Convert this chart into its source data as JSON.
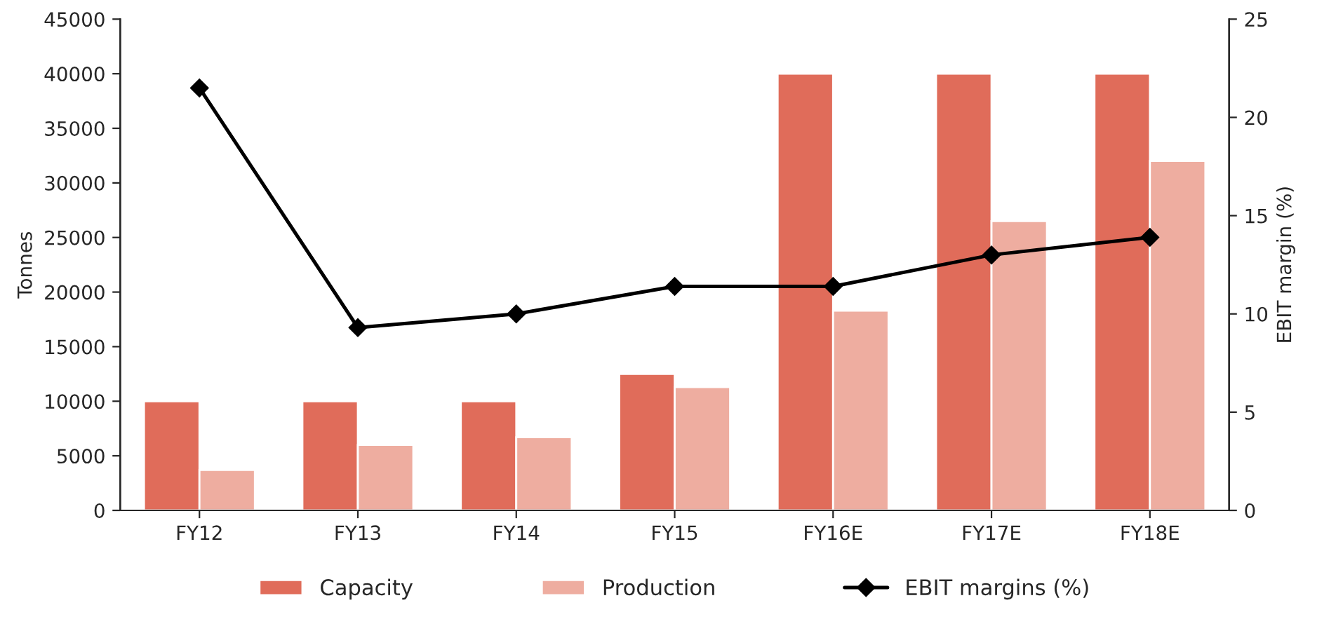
{
  "chart_data": {
    "type": "bar",
    "categories": [
      "FY12",
      "FY13",
      "FY14",
      "FY15",
      "FY16E",
      "FY17E",
      "FY18E"
    ],
    "ylabel": "Tonnes",
    "y2label": "EBIT margin (%)",
    "ylim": [
      0,
      45000
    ],
    "yticks": [
      0,
      5000,
      10000,
      15000,
      20000,
      25000,
      30000,
      35000,
      40000,
      45000
    ],
    "y2lim": [
      0,
      25
    ],
    "y2ticks": [
      0,
      5,
      10,
      15,
      20,
      25
    ],
    "series": [
      {
        "name": "Capacity",
        "color": "#e06c5a",
        "values": [
          10000,
          10000,
          10000,
          12500,
          40000,
          40000,
          40000
        ]
      },
      {
        "name": "Production",
        "color": "#eeada0",
        "values": [
          3700,
          6000,
          6700,
          11300,
          18300,
          26500,
          32000
        ]
      },
      {
        "name": "EBIT margins (%)",
        "type": "line",
        "axis": "y2",
        "color": "#000000",
        "marker": "diamond",
        "values": [
          21.5,
          9.3,
          10.0,
          11.4,
          11.4,
          13.0,
          13.9
        ]
      }
    ],
    "grid": false,
    "legend": "bottom"
  }
}
